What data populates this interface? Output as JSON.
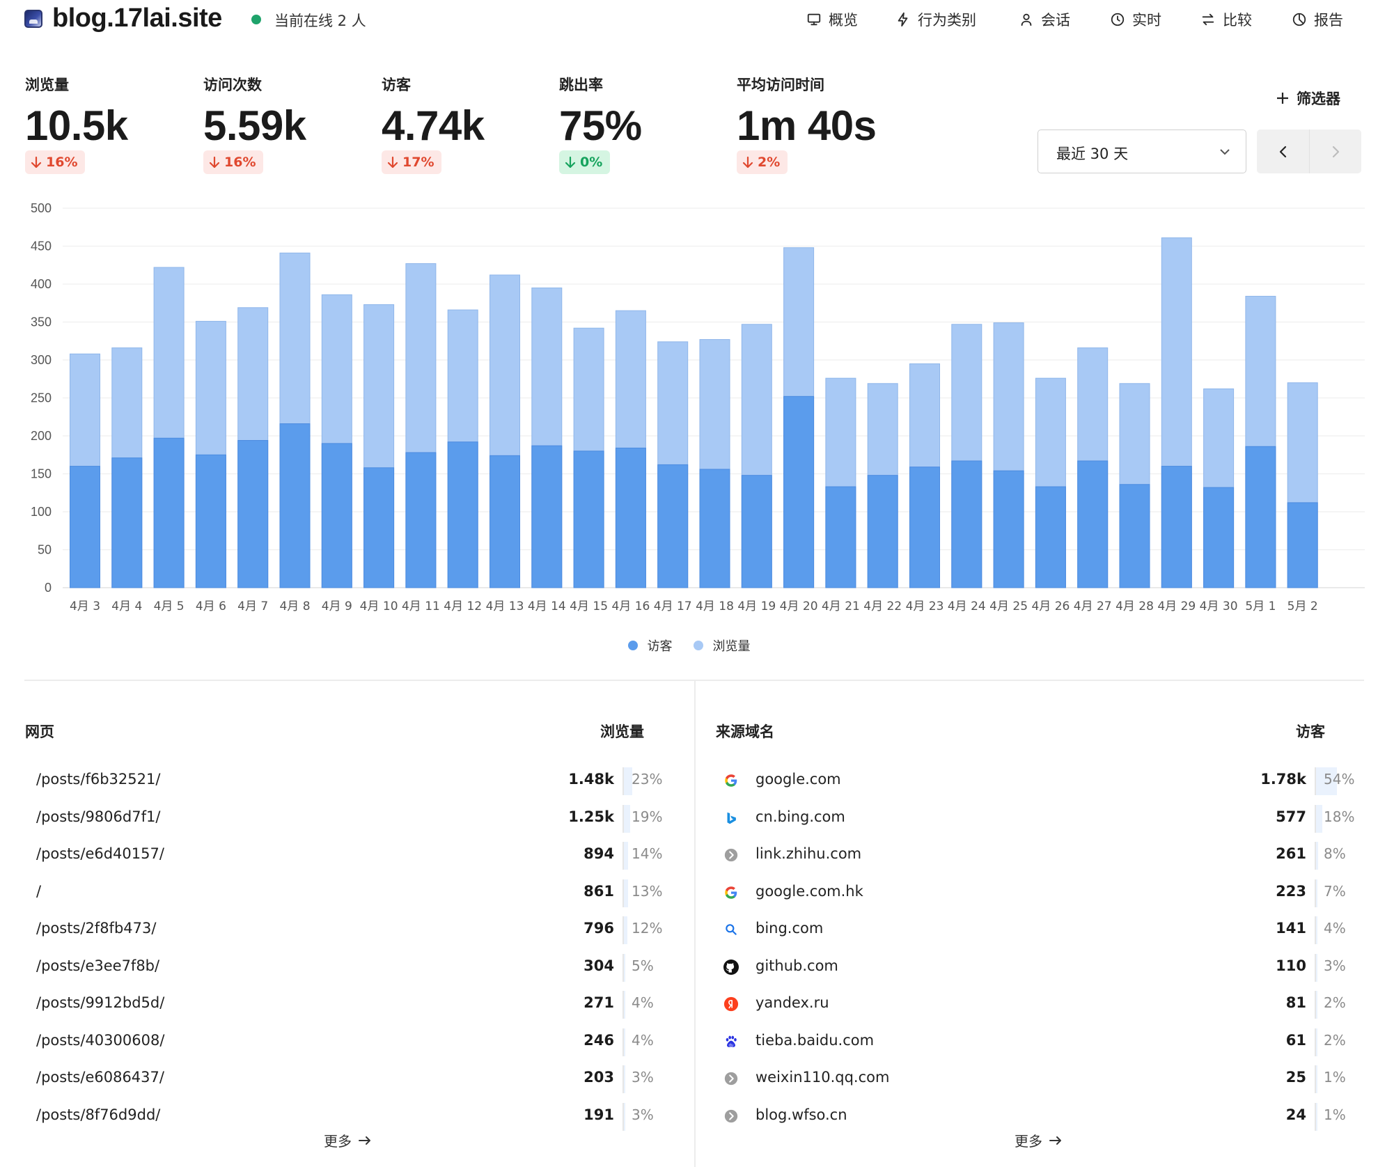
{
  "header": {
    "site_name": "blog.17lai.site",
    "online_text": "当前在线 2 人",
    "nav": [
      {
        "label": "概览",
        "icon": "monitor-icon"
      },
      {
        "label": "行为类别",
        "icon": "bolt-icon"
      },
      {
        "label": "会话",
        "icon": "user-icon"
      },
      {
        "label": "实时",
        "icon": "clock-icon"
      },
      {
        "label": "比较",
        "icon": "swap-icon"
      },
      {
        "label": "报告",
        "icon": "pie-icon"
      }
    ]
  },
  "metrics": [
    {
      "label": "浏览量",
      "value": "10.5k",
      "change": "16%",
      "trend": "down"
    },
    {
      "label": "访问次数",
      "value": "5.59k",
      "change": "16%",
      "trend": "down"
    },
    {
      "label": "访客",
      "value": "4.74k",
      "change": "17%",
      "trend": "down"
    },
    {
      "label": "跳出率",
      "value": "75%",
      "change": "0%",
      "trend": "neutral"
    },
    {
      "label": "平均访问时间",
      "value": "1m 40s",
      "change": "2%",
      "trend": "down"
    }
  ],
  "controls": {
    "filter_label": "筛选器",
    "date_range": "最近 30 天"
  },
  "colors": {
    "visitors": "#5b9cec",
    "pageviews": "#a8c9f5",
    "accent_green": "#1fa36b",
    "down": "#e0482f"
  },
  "chart_data": {
    "type": "bar",
    "stacked": "overlay",
    "categories": [
      "4月 3",
      "4月 4",
      "4月 5",
      "4月 6",
      "4月 7",
      "4月 8",
      "4月 9",
      "4月 10",
      "4月 11",
      "4月 12",
      "4月 13",
      "4月 14",
      "4月 15",
      "4月 16",
      "4月 17",
      "4月 18",
      "4月 19",
      "4月 20",
      "4月 21",
      "4月 22",
      "4月 23",
      "4月 24",
      "4月 25",
      "4月 26",
      "4月 27",
      "4月 28",
      "4月 29",
      "4月 30",
      "5月 1",
      "5月 2"
    ],
    "series": [
      {
        "name": "访客",
        "values": [
          160,
          171,
          197,
          175,
          194,
          216,
          190,
          158,
          178,
          192,
          174,
          187,
          180,
          184,
          162,
          156,
          148,
          252,
          133,
          148,
          159,
          167,
          154,
          133,
          167,
          136,
          160,
          132,
          186,
          112
        ]
      },
      {
        "name": "浏览量",
        "values": [
          308,
          316,
          422,
          351,
          369,
          441,
          386,
          373,
          427,
          366,
          412,
          395,
          342,
          365,
          324,
          327,
          347,
          448,
          276,
          269,
          295,
          347,
          349,
          276,
          316,
          269,
          461,
          262,
          384,
          270
        ]
      }
    ],
    "ylim": [
      0,
      500
    ],
    "yticks": [
      0,
      50,
      100,
      150,
      200,
      250,
      300,
      350,
      400,
      450,
      500
    ],
    "grid": true,
    "legend": "bottom-center"
  },
  "pages": {
    "title": "网页",
    "metric_label": "浏览量",
    "rows": [
      {
        "label": "/posts/f6b32521/",
        "value": "1.48k",
        "percent": "23%",
        "fill": 0.23
      },
      {
        "label": "/posts/9806d7f1/",
        "value": "1.25k",
        "percent": "19%",
        "fill": 0.19
      },
      {
        "label": "/posts/e6d40157/",
        "value": "894",
        "percent": "14%",
        "fill": 0.14
      },
      {
        "label": "/",
        "value": "861",
        "percent": "13%",
        "fill": 0.13
      },
      {
        "label": "/posts/2f8fb473/",
        "value": "796",
        "percent": "12%",
        "fill": 0.12
      },
      {
        "label": "/posts/e3ee7f8b/",
        "value": "304",
        "percent": "5%",
        "fill": 0.05
      },
      {
        "label": "/posts/9912bd5d/",
        "value": "271",
        "percent": "4%",
        "fill": 0.04
      },
      {
        "label": "/posts/40300608/",
        "value": "246",
        "percent": "4%",
        "fill": 0.04
      },
      {
        "label": "/posts/e6086437/",
        "value": "203",
        "percent": "3%",
        "fill": 0.03
      },
      {
        "label": "/posts/8f76d9dd/",
        "value": "191",
        "percent": "3%",
        "fill": 0.03
      }
    ],
    "more_label": "更多"
  },
  "referrers": {
    "title": "来源域名",
    "metric_label": "访客",
    "rows": [
      {
        "label": "google.com",
        "icon": "google-icon",
        "value": "1.78k",
        "percent": "54%",
        "fill": 0.54
      },
      {
        "label": "cn.bing.com",
        "icon": "bing-icon",
        "value": "577",
        "percent": "18%",
        "fill": 0.18
      },
      {
        "label": "link.zhihu.com",
        "icon": "link-icon",
        "value": "261",
        "percent": "8%",
        "fill": 0.08
      },
      {
        "label": "google.com.hk",
        "icon": "google-icon",
        "value": "223",
        "percent": "7%",
        "fill": 0.07
      },
      {
        "label": "bing.com",
        "icon": "search-icon",
        "value": "141",
        "percent": "4%",
        "fill": 0.04
      },
      {
        "label": "github.com",
        "icon": "github-icon",
        "value": "110",
        "percent": "3%",
        "fill": 0.03
      },
      {
        "label": "yandex.ru",
        "icon": "yandex-icon",
        "value": "81",
        "percent": "2%",
        "fill": 0.02
      },
      {
        "label": "tieba.baidu.com",
        "icon": "baidu-icon",
        "value": "61",
        "percent": "2%",
        "fill": 0.02
      },
      {
        "label": "weixin110.qq.com",
        "icon": "link-icon",
        "value": "25",
        "percent": "1%",
        "fill": 0.01
      },
      {
        "label": "blog.wfso.cn",
        "icon": "link-icon",
        "value": "24",
        "percent": "1%",
        "fill": 0.01
      }
    ],
    "more_label": "更多"
  },
  "legend": [
    {
      "label": "访客"
    },
    {
      "label": "浏览量"
    }
  ]
}
